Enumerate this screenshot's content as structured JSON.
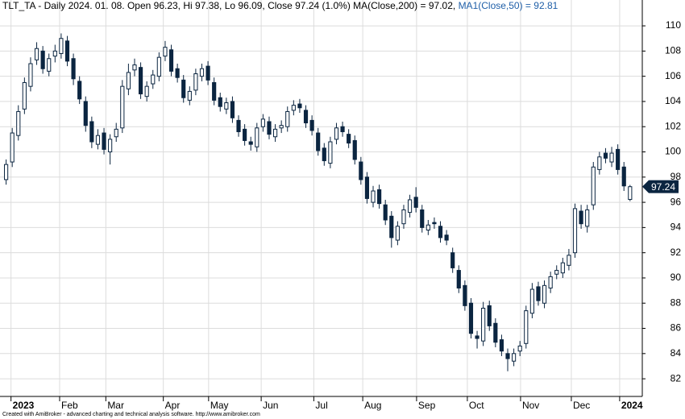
{
  "chart_data": {
    "type": "candlestick",
    "title": "TLT_TA - Daily 2024. 01. 08. Open 96.23, Hi 97.38, Lo 96.09, Close 97.24 (1.0%) MA(Close,200) = 97.02,",
    "ma_label": "MA1(Close,50) = 92.81",
    "footer": "Created with AmiBroker - advanced charting and technical analysis software. http://www.amibroker.com",
    "open": [
      97.8,
      99.2,
      101.3,
      103.4,
      105.2,
      107.3,
      108.0,
      106.4,
      107.6,
      107.8,
      108.8,
      107.4,
      105.6,
      104.0,
      102.4,
      100.6,
      101.5,
      100.0,
      101.2,
      101.9,
      105.0,
      106.5,
      106.7,
      104.4,
      105.4,
      106.0,
      107.6,
      108.1,
      106.6,
      105.7,
      104.1,
      104.9,
      106.0,
      106.8,
      105.5,
      104.3,
      103.4,
      104.0,
      102.5,
      101.8,
      100.8,
      100.4,
      102.0,
      102.4,
      101.2,
      101.9,
      102.0,
      103.3,
      103.8,
      103.3,
      102.5,
      101.5,
      100.3,
      99.1,
      101.0,
      102.0,
      101.4,
      100.9,
      99.2,
      98.0,
      96.0,
      97.0,
      95.8,
      94.9,
      93.0,
      94.3,
      95.2,
      96.4,
      95.4,
      93.8,
      94.4,
      94.1,
      93.4,
      92.0,
      90.6,
      89.4,
      88.0,
      85.4,
      85.0,
      87.8,
      86.4,
      85.1,
      84.0,
      83.4,
      84.2,
      84.8,
      87.2,
      89.3,
      88.0,
      89.2,
      90.3,
      90.4,
      91.0,
      92.0,
      95.3,
      94.1,
      95.8,
      98.6,
      99.9,
      99.2,
      100.2,
      98.8,
      96.23
    ],
    "high": [
      99.4,
      101.9,
      103.7,
      105.9,
      107.5,
      108.7,
      108.4,
      107.8,
      108.5,
      109.4,
      109.2,
      107.8,
      106.0,
      104.4,
      102.8,
      101.8,
      101.9,
      101.4,
      102.3,
      105.7,
      107.0,
      107.4,
      107.1,
      105.6,
      106.5,
      107.9,
      108.8,
      108.5,
      107.0,
      106.1,
      105.2,
      106.6,
      107.0,
      107.2,
      105.9,
      104.7,
      104.3,
      104.4,
      102.9,
      102.2,
      101.2,
      102.3,
      103.0,
      102.8,
      102.2,
      102.5,
      103.6,
      104.1,
      104.2,
      103.7,
      102.9,
      101.9,
      100.7,
      101.2,
      102.3,
      102.4,
      101.8,
      101.3,
      99.6,
      98.4,
      97.3,
      97.4,
      96.2,
      95.3,
      94.5,
      95.8,
      96.6,
      97.2,
      95.8,
      94.6,
      94.8,
      94.5,
      93.8,
      92.4,
      91.0,
      89.8,
      88.4,
      85.8,
      88.1,
      88.2,
      86.8,
      85.5,
      84.4,
      84.4,
      85.0,
      87.8,
      89.6,
      89.7,
      89.8,
      90.5,
      91.0,
      91.6,
      92.3,
      95.9,
      95.8,
      95.8,
      99.2,
      100.0,
      100.3,
      100.4,
      100.6,
      99.2,
      97.38
    ],
    "low": [
      97.4,
      98.8,
      100.9,
      103.0,
      104.8,
      106.9,
      106.2,
      106.0,
      107.1,
      107.4,
      106.8,
      105.3,
      103.8,
      101.6,
      100.3,
      100.2,
      99.8,
      99.0,
      100.8,
      101.5,
      104.5,
      106.0,
      104.2,
      104.0,
      105.0,
      105.6,
      107.2,
      106.0,
      105.5,
      103.9,
      103.7,
      104.5,
      105.6,
      105.3,
      103.7,
      103.2,
      103.0,
      102.3,
      101.2,
      100.5,
      100.1,
      100.0,
      101.6,
      101.0,
      100.8,
      101.5,
      101.6,
      102.9,
      103.1,
      101.9,
      101.3,
      99.7,
      98.9,
      98.7,
      100.6,
      101.2,
      100.3,
      99.0,
      97.4,
      95.9,
      95.6,
      95.5,
      94.2,
      92.4,
      92.6,
      93.9,
      94.8,
      95.2,
      93.6,
      93.4,
      93.9,
      92.8,
      92.6,
      90.4,
      88.8,
      87.4,
      85.2,
      84.4,
      84.6,
      85.8,
      84.5,
      83.8,
      82.6,
      83.0,
      83.8,
      84.4,
      86.8,
      87.8,
      87.6,
      88.8,
      89.9,
      90.0,
      90.6,
      91.6,
      93.9,
      93.6,
      95.4,
      98.2,
      99.1,
      98.8,
      98.2,
      96.9,
      96.09
    ],
    "close": [
      99.0,
      101.5,
      103.2,
      105.5,
      107.0,
      108.2,
      106.6,
      107.4,
      108.0,
      109.0,
      107.2,
      105.8,
      104.2,
      102.1,
      100.8,
      101.3,
      100.2,
      101.0,
      101.8,
      105.2,
      106.3,
      106.9,
      104.6,
      105.2,
      106.1,
      107.5,
      108.3,
      106.4,
      105.9,
      104.3,
      104.8,
      106.2,
      106.6,
      105.7,
      104.1,
      103.6,
      103.9,
      102.7,
      101.6,
      100.9,
      100.6,
      101.9,
      102.6,
      101.4,
      101.8,
      102.1,
      103.2,
      103.7,
      103.5,
      102.3,
      101.7,
      100.1,
      99.3,
      100.8,
      101.9,
      101.6,
      100.7,
      99.4,
      97.8,
      96.3,
      96.9,
      95.9,
      94.6,
      93.2,
      94.1,
      95.4,
      96.2,
      95.6,
      94.0,
      94.2,
      94.3,
      93.2,
      93.0,
      90.8,
      89.2,
      87.8,
      85.6,
      85.2,
      87.6,
      86.2,
      84.9,
      84.2,
      83.6,
      84.0,
      84.6,
      87.4,
      89.1,
      88.2,
      89.4,
      90.1,
      90.6,
      91.2,
      91.8,
      95.5,
      94.3,
      95.4,
      98.8,
      99.6,
      99.5,
      99.9,
      98.6,
      97.3,
      97.24
    ],
    "xlim": [
      -1,
      104
    ],
    "xticks": [
      {
        "value": 0.8,
        "label": "2023"
      },
      {
        "value": 8.75,
        "label": "Feb"
      },
      {
        "value": 16.3,
        "label": "Mar"
      },
      {
        "value": 25.7,
        "label": "Apr"
      },
      {
        "value": 33.1,
        "label": "May"
      },
      {
        "value": 41.7,
        "label": "Jun"
      },
      {
        "value": 50.3,
        "label": "Jul"
      },
      {
        "value": 58.3,
        "label": "Aug"
      },
      {
        "value": 67.1,
        "label": "Sep"
      },
      {
        "value": 75.4,
        "label": "Oct"
      },
      {
        "value": 84.1,
        "label": "Nov"
      },
      {
        "value": 92.4,
        "label": "Dec"
      },
      {
        "value": 100.3,
        "label": "2024"
      }
    ],
    "ylim": [
      80.6,
      112.05
    ],
    "yticks": [
      82,
      84,
      86,
      88,
      90,
      92,
      94,
      96,
      98,
      100,
      102,
      104,
      106,
      108,
      110
    ],
    "grid": true,
    "up_color": "#ffffff",
    "down_color": "#0b2540",
    "ma_color": "#1f5fa8"
  }
}
